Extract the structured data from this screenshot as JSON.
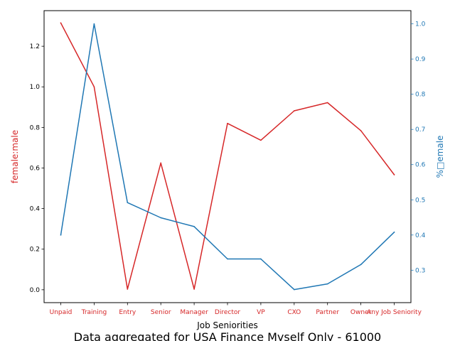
{
  "chart_data": {
    "type": "line",
    "title": "Data aggregated for USA Finance Myself Only - 61000",
    "xlabel": "Job Seniorities",
    "categories": [
      "Unpaid",
      "Training",
      "Entry",
      "Senior",
      "Manager",
      "Director",
      "VP",
      "CXO",
      "Partner",
      "Owner",
      "Any Job Seniority"
    ],
    "series": [
      {
        "name": "female:male",
        "axis": "left",
        "color": "#d62728",
        "values": [
          1.315,
          1.0,
          0.003,
          0.625,
          0.003,
          0.82,
          0.737,
          0.882,
          0.922,
          0.784,
          0.567
        ]
      },
      {
        "name": "%female",
        "axis": "right",
        "color": "#1f77b4",
        "values": [
          0.4,
          1.0,
          0.492,
          0.449,
          0.424,
          0.332,
          0.332,
          0.245,
          0.261,
          0.316,
          0.408
        ]
      }
    ],
    "left_axis": {
      "label": "female:male",
      "color": "#d62728",
      "ylim": [
        -0.0635,
        1.3755
      ],
      "ticks": [
        0.0,
        0.2,
        0.4,
        0.6,
        0.8,
        1.0,
        1.2
      ],
      "tick_labels": [
        "0.0",
        "0.2",
        "0.4",
        "0.6",
        "0.8",
        "1.0",
        "1.2"
      ]
    },
    "right_axis": {
      "label": "%□emale",
      "color": "#1f77b4",
      "ylim": [
        0.2078,
        1.0375
      ],
      "ticks": [
        0.3,
        0.4,
        0.5,
        0.6,
        0.7,
        0.8,
        0.9,
        1.0
      ],
      "tick_labels": [
        "0.3",
        "0.4",
        "0.5",
        "0.6",
        "0.7",
        "0.8",
        "0.9",
        "1.0"
      ]
    },
    "x_tick_color": "#d62728",
    "grid": false,
    "legend": "none"
  }
}
